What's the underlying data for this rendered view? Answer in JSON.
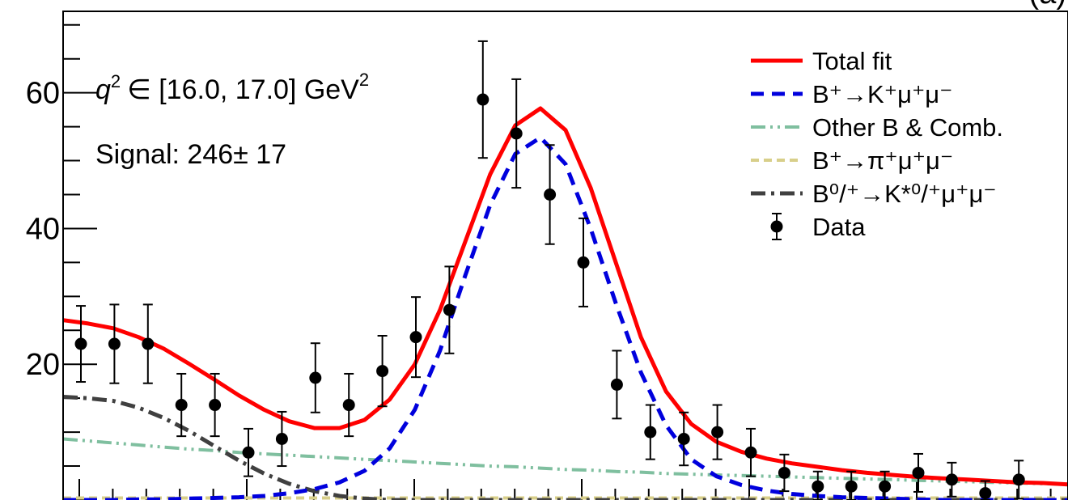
{
  "chart_data": {
    "type": "scatter",
    "title": "",
    "xlabel": "",
    "ylabel": "",
    "ylim": [
      0,
      72
    ],
    "y_ticks": [
      20,
      40,
      60
    ],
    "y_tick_labels": [
      "20",
      "40",
      "60"
    ],
    "grid": false,
    "legend_position": "top-right",
    "corner_label": "(a)",
    "annotations": {
      "q2_prefix": "q",
      "q2_exp": "2",
      "q2_range": "∈ [16.0, 17.0] GeV",
      "q2_unit_exp": "2",
      "signal": "Signal: 246± 17"
    },
    "legend": [
      {
        "key": "total",
        "label": "Total fit",
        "style": "solid",
        "color": "#ff0000"
      },
      {
        "key": "signal",
        "label": "B⁺→K⁺μ⁺μ⁻",
        "style": "dashed",
        "color": "#0000dd"
      },
      {
        "key": "other",
        "label": "Other B & Comb.",
        "style": "dash-dot-dot",
        "color": "#7fbf9f"
      },
      {
        "key": "pi",
        "label": "B⁺→π⁺μ⁺μ⁻",
        "style": "dotted-dash",
        "color": "#d8cf8a"
      },
      {
        "key": "kstar",
        "label": "B⁰/⁺→K*⁰/⁺μ⁺μ⁻",
        "style": "dash-dot",
        "color": "#404040"
      },
      {
        "key": "data",
        "label": "Data",
        "style": "marker",
        "color": "#000000"
      }
    ],
    "data_points": {
      "y": [
        23,
        23,
        23,
        14,
        14,
        7,
        9,
        18,
        14,
        19,
        24,
        28,
        59,
        54,
        45,
        35,
        17,
        10,
        9,
        10,
        7,
        4,
        2,
        2,
        2,
        4,
        3,
        1,
        3
      ],
      "yerr": [
        5.6,
        5.8,
        5.8,
        4.6,
        4.6,
        3.5,
        4.0,
        5.1,
        4.6,
        5.2,
        5.9,
        6.4,
        8.6,
        8.0,
        7.3,
        6.5,
        5.0,
        4.0,
        3.9,
        4.0,
        3.5,
        2.7,
        2.2,
        2.2,
        2.2,
        2.8,
        2.5,
        1.8,
        2.8
      ]
    },
    "curves": {
      "total": [
        26.5,
        26.0,
        25.3,
        24.0,
        22.3,
        20.1,
        17.8,
        15.4,
        13.3,
        11.6,
        10.6,
        10.6,
        11.8,
        14.8,
        20.0,
        28.0,
        38.0,
        48.0,
        55.2,
        57.7,
        54.5,
        46.0,
        35.0,
        24.0,
        16.0,
        11.2,
        8.6,
        7.1,
        6.1,
        5.4,
        4.9,
        4.4,
        4.0,
        3.7,
        3.4,
        3.2,
        3.0,
        2.8,
        2.6,
        2.5,
        2.3
      ],
      "signal": [
        0.0,
        0.0,
        0.0,
        0.1,
        0.1,
        0.2,
        0.3,
        0.4,
        0.6,
        1.0,
        1.6,
        2.6,
        4.3,
        7.6,
        13.3,
        22.0,
        33.0,
        43.5,
        51.0,
        53.4,
        49.5,
        40.0,
        29.0,
        18.8,
        11.0,
        6.0,
        3.5,
        2.2,
        1.4,
        0.9,
        0.6,
        0.4,
        0.3,
        0.2,
        0.1,
        0.0,
        0.0,
        0.0,
        0.0,
        0.0,
        0.0
      ],
      "other": [
        9.0,
        8.7,
        8.4,
        8.1,
        7.8,
        7.5,
        7.3,
        7.0,
        6.8,
        6.6,
        6.4,
        6.2,
        6.0,
        5.8,
        5.6,
        5.4,
        5.2,
        5.0,
        4.9,
        4.7,
        4.5,
        4.4,
        4.2,
        4.1,
        3.9,
        3.8,
        3.7,
        3.6,
        3.5,
        3.4,
        3.3,
        3.2,
        3.1,
        3.0,
        2.9,
        2.8,
        2.7,
        2.6,
        2.5,
        2.4,
        2.3
      ],
      "kstar": [
        15.2,
        15.0,
        14.6,
        13.6,
        12.1,
        10.2,
        8.0,
        5.8,
        3.9,
        2.4,
        1.3,
        0.6,
        0.2,
        0.0,
        0.0,
        0.0,
        0.0,
        0.0,
        0.0,
        0.0,
        0.0,
        0.0,
        0.0,
        0.0,
        0.0,
        0.0,
        0.0,
        0.0,
        0.0,
        0.0,
        0.0,
        0.0,
        0.0,
        0.0,
        0.0,
        0.0,
        0.0,
        0.0,
        0.0,
        0.0,
        0.0
      ],
      "pi": [
        0.3,
        0.3,
        0.3,
        0.3,
        0.3,
        0.3,
        0.3,
        0.3,
        0.3,
        0.3,
        0.3,
        0.3,
        0.3,
        0.3,
        0.3,
        0.3,
        0.3,
        0.3,
        0.3,
        0.3,
        0.3,
        0.3,
        0.3,
        0.3,
        0.3,
        0.3,
        0.3,
        0.3,
        0.3,
        0.3,
        0.3,
        0.3,
        0.3,
        0.3,
        0.3,
        0.3,
        0.3,
        0.3,
        0.3,
        0.3,
        0.3
      ]
    }
  }
}
